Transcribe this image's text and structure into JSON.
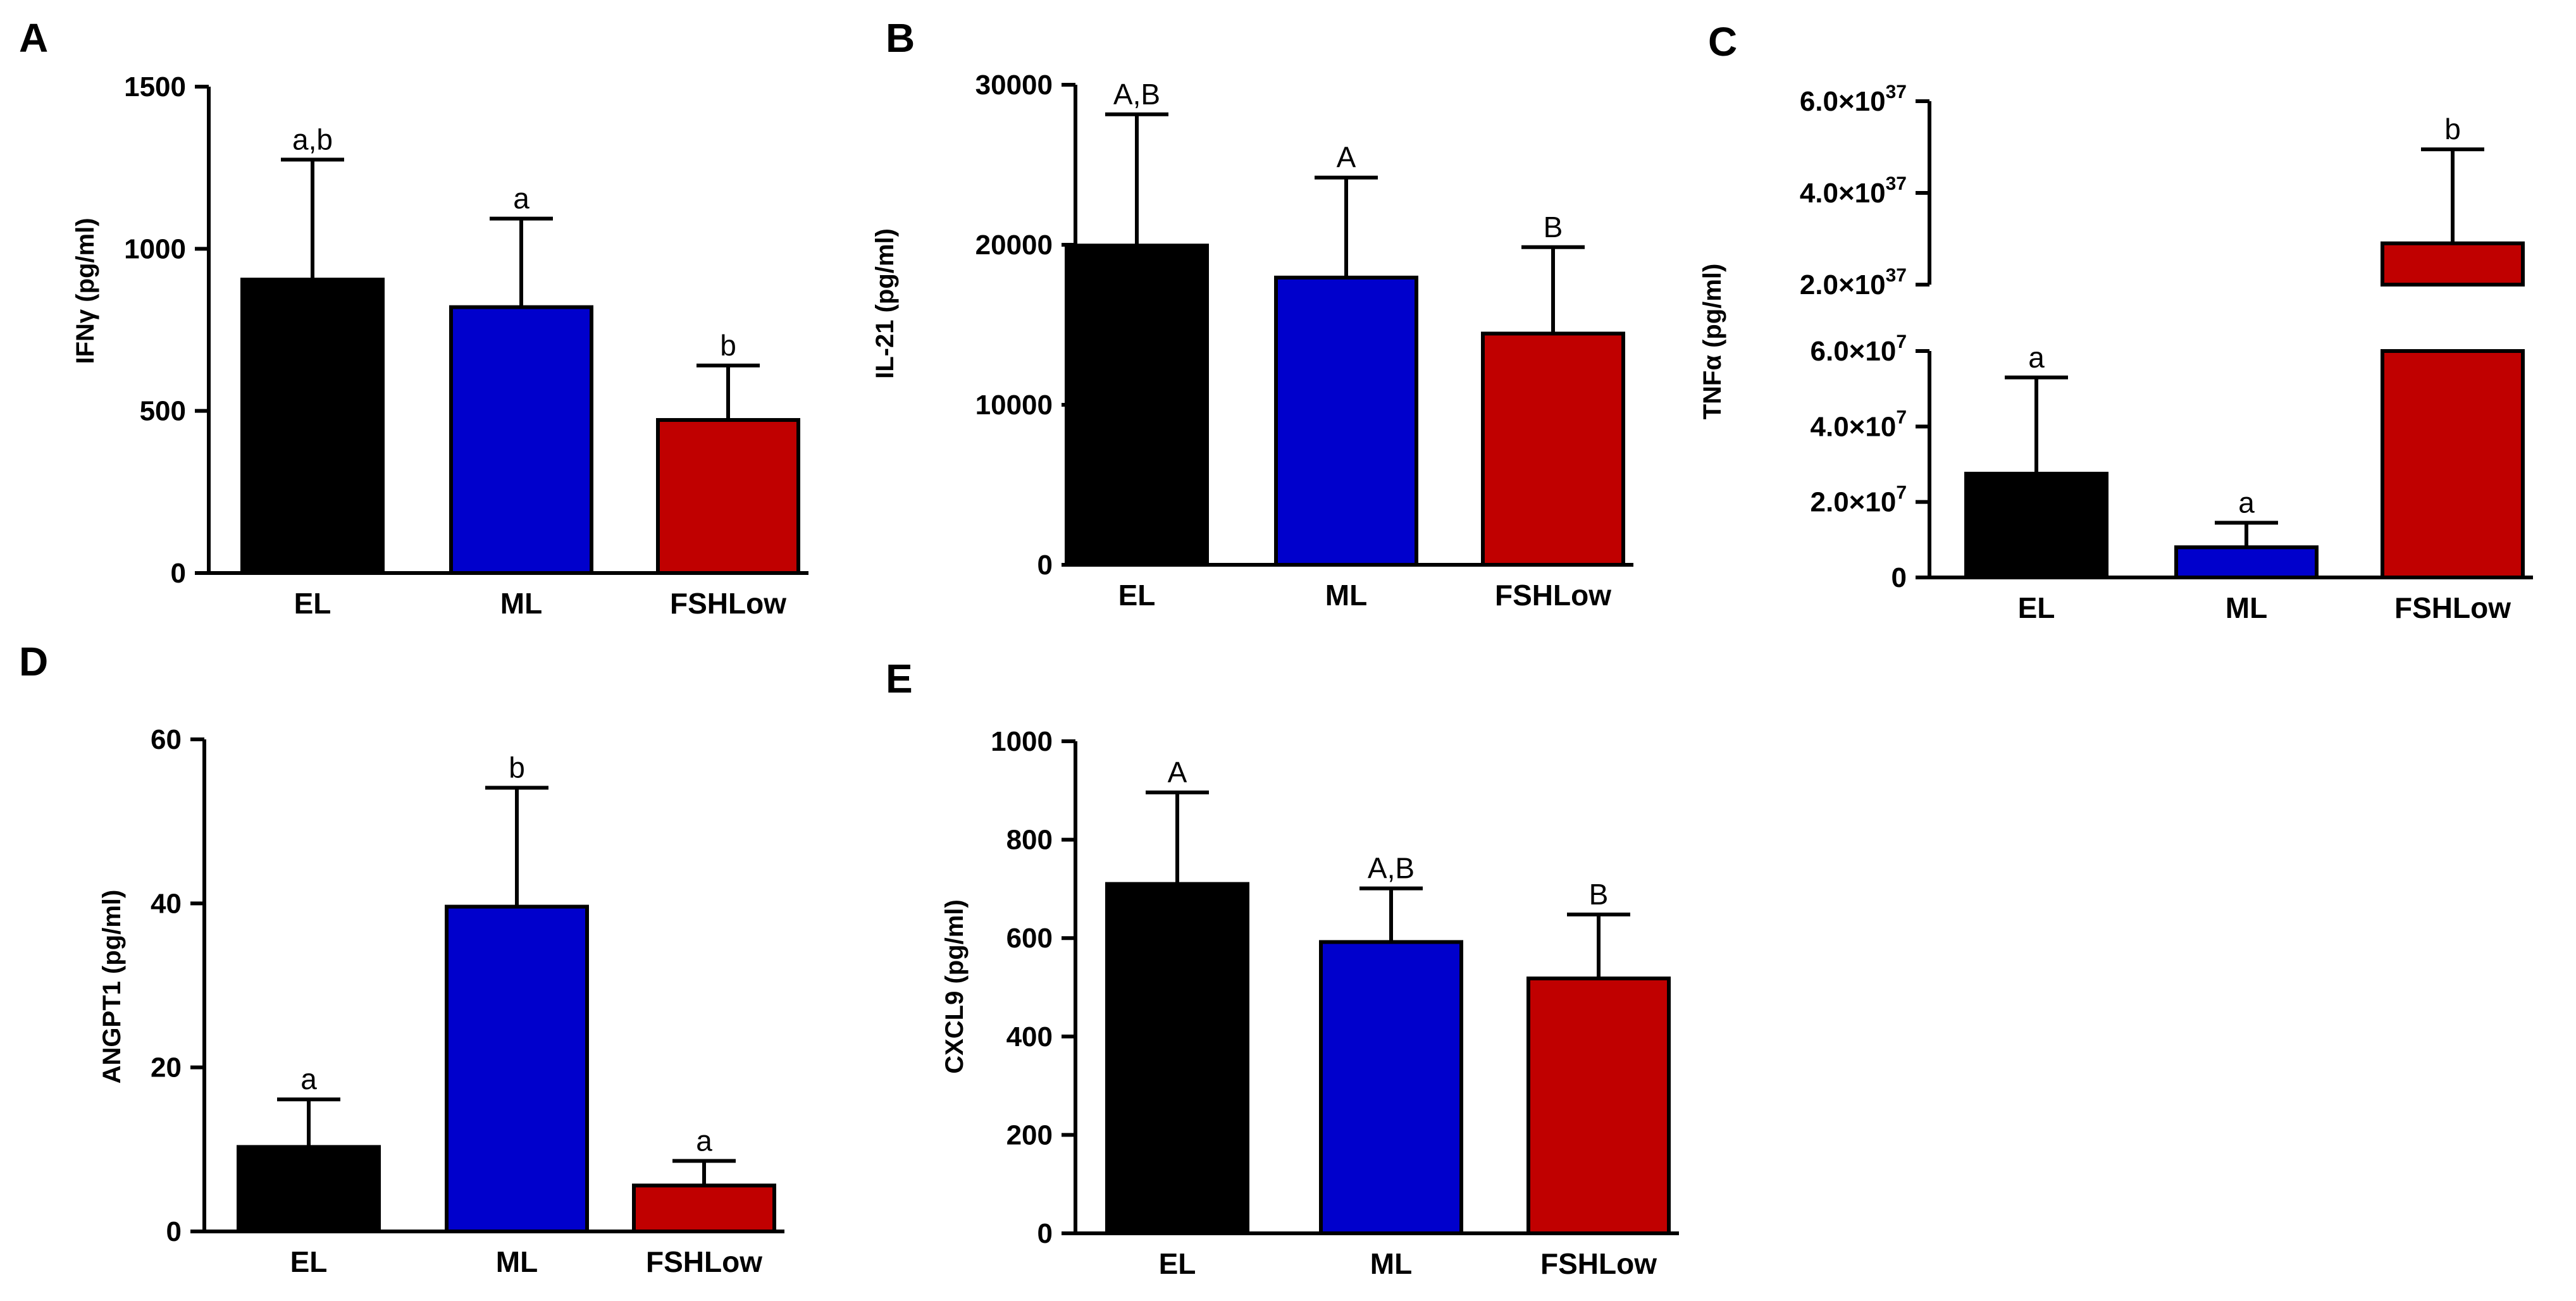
{
  "chart_data": [
    {
      "panel": "A",
      "type": "bar",
      "categories": [
        "EL",
        "ML",
        "FSHLow"
      ],
      "values": [
        905,
        820,
        472
      ],
      "errors": [
        1275,
        1093,
        640
      ],
      "significance": [
        "a,b",
        "a",
        "b"
      ],
      "ylabel": "IFNγ  (pg/ml)",
      "ylim": [
        0,
        1500
      ],
      "yticks": [
        0,
        500,
        1000,
        1500
      ],
      "ytick_labels": [
        "0",
        "500",
        "1000",
        "1500"
      ],
      "colors": [
        "#000000",
        "#0000cc",
        "#c00000"
      ]
    },
    {
      "panel": "B",
      "type": "bar",
      "categories": [
        "EL",
        "ML",
        "FSHLow"
      ],
      "values": [
        19950,
        17950,
        14450
      ],
      "errors": [
        28150,
        24200,
        19850
      ],
      "significance": [
        "A,B",
        "A",
        "B"
      ],
      "ylabel": "IL-21  (pg/ml)",
      "ylim": [
        0,
        30000
      ],
      "yticks": [
        0,
        10000,
        20000,
        30000
      ],
      "ytick_labels": [
        "0",
        "10000",
        "20000",
        "30000"
      ],
      "colors": [
        "#000000",
        "#0000cc",
        "#c00000"
      ]
    },
    {
      "panel": "C",
      "type": "bar",
      "categories": [
        "EL",
        "ML",
        "FSHLow"
      ],
      "values": [
        27500000,
        8000000,
        2.9e+37
      ],
      "errors": [
        53000000,
        14500000,
        4.95e+37
      ],
      "significance": [
        "a",
        "a",
        "b"
      ],
      "ylabel": "TNFα  (pg/ml)",
      "broken_axis": true,
      "lower_ylim": [
        0,
        60000000
      ],
      "upper_ylim": [
        2e+37,
        6e+37
      ],
      "lower_yticks": [
        0,
        20000000,
        40000000,
        60000000
      ],
      "lower_ytick_labels": [
        "0",
        "2.0×10",
        "4.0×10",
        "6.0×10"
      ],
      "lower_ytick_exponents": [
        "",
        "7",
        "7",
        "7"
      ],
      "upper_yticks": [
        2e+37,
        4e+37,
        6e+37
      ],
      "upper_ytick_labels": [
        "2.0×10",
        "4.0×10",
        "6.0×10"
      ],
      "upper_ytick_exponents": [
        "37",
        "37",
        "37"
      ],
      "colors": [
        "#000000",
        "#0000cc",
        "#c00000"
      ]
    },
    {
      "panel": "D",
      "type": "bar",
      "categories": [
        "EL",
        "ML",
        "FSHLow"
      ],
      "values": [
        10.3,
        39.6,
        5.6
      ],
      "errors": [
        16.1,
        54.1,
        8.6
      ],
      "significance": [
        "a",
        "b",
        "a"
      ],
      "ylabel": "ANGPT1 (pg/ml)",
      "ylim": [
        0,
        60
      ],
      "yticks": [
        0,
        20,
        40,
        60
      ],
      "ytick_labels": [
        "0",
        "20",
        "40",
        "60"
      ],
      "colors": [
        "#000000",
        "#0000cc",
        "#c00000"
      ]
    },
    {
      "panel": "E",
      "type": "bar",
      "categories": [
        "EL",
        "ML",
        "FSHLow"
      ],
      "values": [
        710,
        592,
        518
      ],
      "errors": [
        896,
        701,
        648
      ],
      "significance": [
        "A",
        "A,B",
        "B"
      ],
      "ylabel": "CXCL9 (pg/ml)",
      "ylim": [
        0,
        1000
      ],
      "yticks": [
        0,
        200,
        400,
        600,
        800,
        1000
      ],
      "ytick_labels": [
        "0",
        "200",
        "400",
        "600",
        "800",
        "1000"
      ],
      "colors": [
        "#000000",
        "#0000cc",
        "#c00000"
      ]
    }
  ]
}
